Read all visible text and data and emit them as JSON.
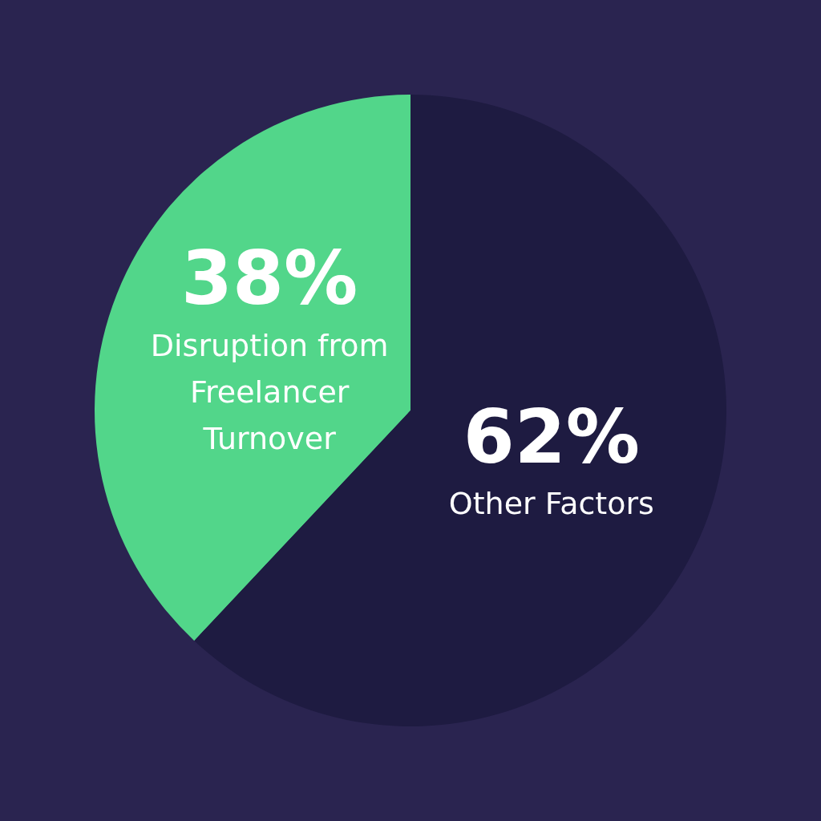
{
  "chart_data": {
    "type": "pie",
    "categories": [
      "Disruption from Freelancer Turnover",
      "Other Factors"
    ],
    "values": [
      38,
      62
    ],
    "colors": [
      "#52d68a",
      "#1e1b41"
    ],
    "value_labels": [
      "38%",
      "62%"
    ],
    "legend": false
  }
}
